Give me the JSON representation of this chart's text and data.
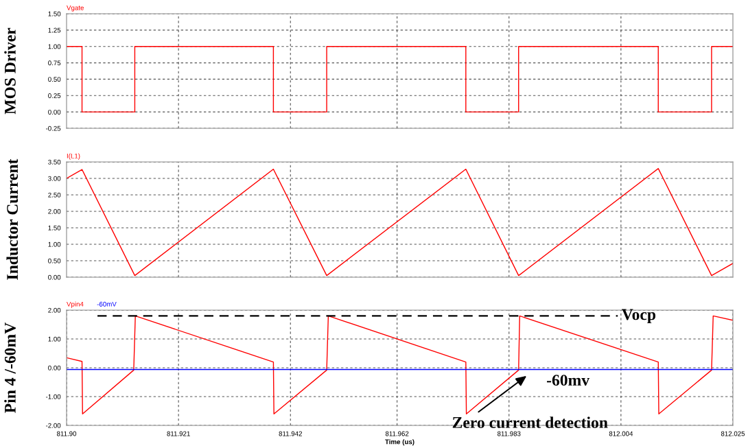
{
  "chart_data": [
    {
      "type": "step",
      "ylabel": "MOS Driver",
      "xlim": [
        811.9,
        812.025
      ],
      "xticks": [
        {
          "value": 811.921,
          "label": null
        },
        {
          "value": 811.942,
          "label": null
        },
        {
          "value": 811.962,
          "label": null
        },
        {
          "value": 811.983,
          "label": null
        },
        {
          "value": 812.004,
          "label": null
        }
      ],
      "ylim": [
        -0.25,
        1.5
      ],
      "yticks": [
        {
          "value": -0.25,
          "label": "-0.25"
        },
        {
          "value": 0,
          "label": "0.00"
        },
        {
          "value": 0.25,
          "label": "0.25"
        },
        {
          "value": 0.5,
          "label": "0.50"
        },
        {
          "value": 0.75,
          "label": "0.75"
        },
        {
          "value": 1,
          "label": "1.00"
        },
        {
          "value": 1.25,
          "label": "1.25"
        },
        {
          "value": 1.5,
          "label": "1.50"
        }
      ],
      "tick_labels": "y",
      "grid": true,
      "legend": "top left",
      "series": [
        {
          "name": "Vgate",
          "color": "#ff0000",
          "x": [
            811.9,
            811.9029,
            811.9128,
            811.9388,
            811.9488,
            811.9749,
            811.9848,
            812.011,
            812.021,
            812.025
          ],
          "values": [
            1,
            0,
            1,
            0,
            1,
            0,
            1,
            0,
            1,
            1
          ]
        }
      ]
    },
    {
      "type": "line",
      "ylabel": "Inductor Current",
      "xlim": [
        811.9,
        812.025
      ],
      "xticks": [
        {
          "value": 811.921,
          "label": null
        },
        {
          "value": 811.942,
          "label": null
        },
        {
          "value": 811.962,
          "label": null
        },
        {
          "value": 811.983,
          "label": null
        },
        {
          "value": 812.004,
          "label": null
        }
      ],
      "ylim": [
        0,
        3.5
      ],
      "yticks": [
        {
          "value": 0,
          "label": "0.00"
        },
        {
          "value": 0.5,
          "label": "0.50"
        },
        {
          "value": 1,
          "label": "1.00"
        },
        {
          "value": 1.5,
          "label": "1.50"
        },
        {
          "value": 2,
          "label": "2.00"
        },
        {
          "value": 2.5,
          "label": "2.50"
        },
        {
          "value": 3,
          "label": "3.00"
        },
        {
          "value": 3.5,
          "label": "3.50"
        }
      ],
      "tick_labels": "y",
      "grid": true,
      "legend": "top left",
      "series": [
        {
          "name": "I(L1)",
          "color": "#ff0000",
          "x": [
            811.9,
            811.9029,
            811.9128,
            811.9388,
            811.9488,
            811.9749,
            811.9848,
            812.011,
            812.021,
            812.025
          ],
          "values": [
            3.0,
            3.27,
            0.05,
            3.28,
            0.05,
            3.28,
            0.05,
            3.3,
            0.05,
            0.42
          ]
        }
      ]
    },
    {
      "type": "line",
      "ylabel": "Pin 4 /-60mV",
      "xlabel": "Time (us)",
      "xlim": [
        811.9,
        812.025
      ],
      "xticks": [
        {
          "value": 811.9,
          "label": "811.90"
        },
        811.921,
        811.942,
        811.962,
        811.983,
        812.004,
        812.025
      ],
      "ylim": [
        -2,
        2
      ],
      "yticks": [
        {
          "value": -2,
          "label": "-2.00"
        },
        {
          "value": -1,
          "label": "-1.00"
        },
        {
          "value": 0,
          "label": "0.00"
        },
        {
          "value": 1,
          "label": "1.00"
        },
        {
          "value": 2,
          "label": "2.00"
        }
      ],
      "grid": true,
      "legend": "top left",
      "series": [
        {
          "name": "Vpin4",
          "color": "#ff0000",
          "x": [
            811.9,
            811.9029,
            811.903,
            811.9126,
            811.9129,
            811.9388,
            811.9389,
            811.9488,
            811.9491,
            811.9749,
            811.975,
            811.9848,
            811.985,
            812.011,
            812.0111,
            812.021,
            812.0213,
            812.025
          ],
          "values": [
            0.35,
            0.22,
            -1.6,
            -0.08,
            1.8,
            0.2,
            -1.6,
            -0.08,
            1.8,
            0.2,
            -1.6,
            -0.08,
            1.8,
            0.2,
            -1.6,
            -0.08,
            1.8,
            1.65
          ]
        },
        {
          "name": "-60mV",
          "color": "#0000ff",
          "x": [
            811.9,
            812.025
          ],
          "values": [
            -0.06,
            -0.06
          ]
        },
        {
          "name": "Vocp",
          "color": "#000000",
          "line_style": "dashed",
          "x": [
            811.9058,
            812.0034
          ],
          "values": [
            1.8,
            1.8
          ]
        }
      ],
      "annotations": [
        "-60mv",
        {
          "text": "Zero current detection",
          "x": 811.9848,
          "y": -0.08
        }
      ]
    }
  ]
}
